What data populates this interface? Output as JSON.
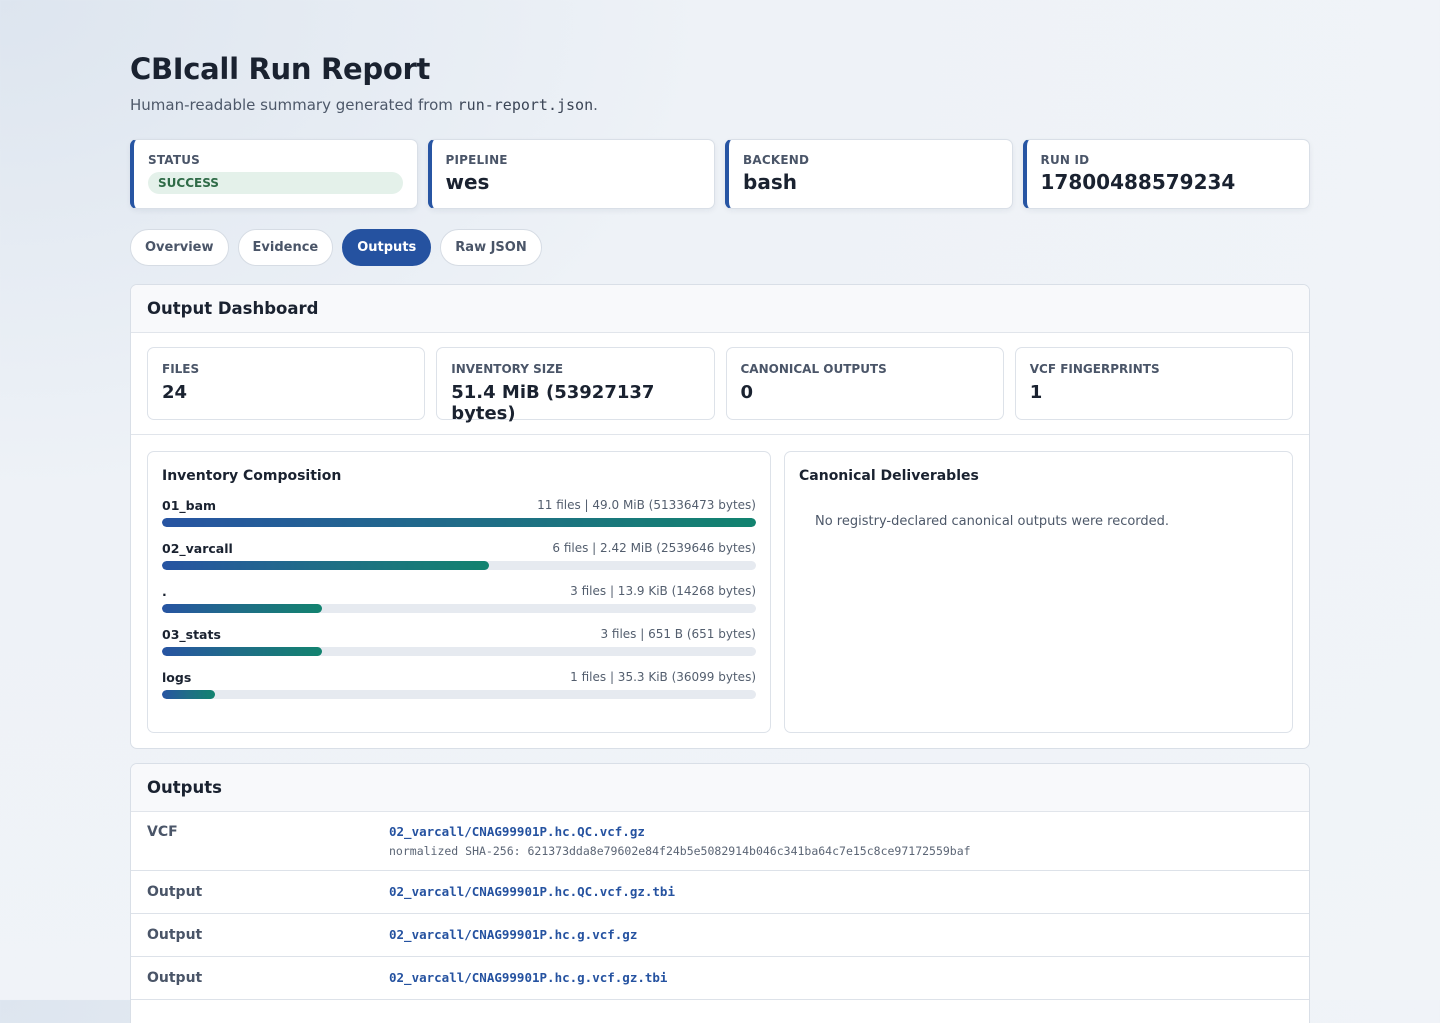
{
  "header": {
    "title": "CBIcall Run Report",
    "subtitle_prefix": "Human-readable summary generated from ",
    "subtitle_code": "run-report.json",
    "subtitle_suffix": "."
  },
  "summary": {
    "status_label": "STATUS",
    "status_value": "SUCCESS",
    "pipeline_label": "PIPELINE",
    "pipeline_value": "wes",
    "backend_label": "BACKEND",
    "backend_value": "bash",
    "run_id_label": "RUN ID",
    "run_id_value": "17800488579234"
  },
  "tabs": [
    "Overview",
    "Evidence",
    "Outputs",
    "Raw JSON"
  ],
  "active_tab": "Outputs",
  "dashboard": {
    "title": "Output Dashboard",
    "metrics": [
      {
        "label": "FILES",
        "value": "24"
      },
      {
        "label": "INVENTORY SIZE",
        "value": "51.4 MiB (53927137 bytes)"
      },
      {
        "label": "CANONICAL OUTPUTS",
        "value": "0"
      },
      {
        "label": "VCF FINGERPRINTS",
        "value": "1"
      }
    ],
    "composition": {
      "title": "Inventory Composition",
      "rows": [
        {
          "name": "01_bam",
          "meta": "11 files | 49.0 MiB (51336473 bytes)",
          "fraction": 1.0
        },
        {
          "name": "02_varcall",
          "meta": "6 files | 2.42 MiB (2539646 bytes)",
          "fraction": 0.55
        },
        {
          "name": ".",
          "meta": "3 files | 13.9 KiB (14268 bytes)",
          "fraction": 0.27
        },
        {
          "name": "03_stats",
          "meta": "3 files | 651 B (651 bytes)",
          "fraction": 0.27
        },
        {
          "name": "logs",
          "meta": "1 files | 35.3 KiB (36099 bytes)",
          "fraction": 0.09
        }
      ]
    },
    "canonical": {
      "title": "Canonical Deliverables",
      "empty_message": "No registry-declared canonical outputs were recorded."
    }
  },
  "outputs": {
    "title": "Outputs",
    "rows": [
      {
        "kind": "VCF",
        "path": "02_varcall/CNAG99901P.hc.QC.vcf.gz",
        "hash": "normalized SHA-256: 621373dda8e79602e84f24b5e5082914b046c341ba64c7e15c8ce97172559baf"
      },
      {
        "kind": "Output",
        "path": "02_varcall/CNAG99901P.hc.QC.vcf.gz.tbi"
      },
      {
        "kind": "Output",
        "path": "02_varcall/CNAG99901P.hc.g.vcf.gz"
      },
      {
        "kind": "Output",
        "path": "02_varcall/CNAG99901P.hc.g.vcf.gz.tbi"
      }
    ]
  }
}
